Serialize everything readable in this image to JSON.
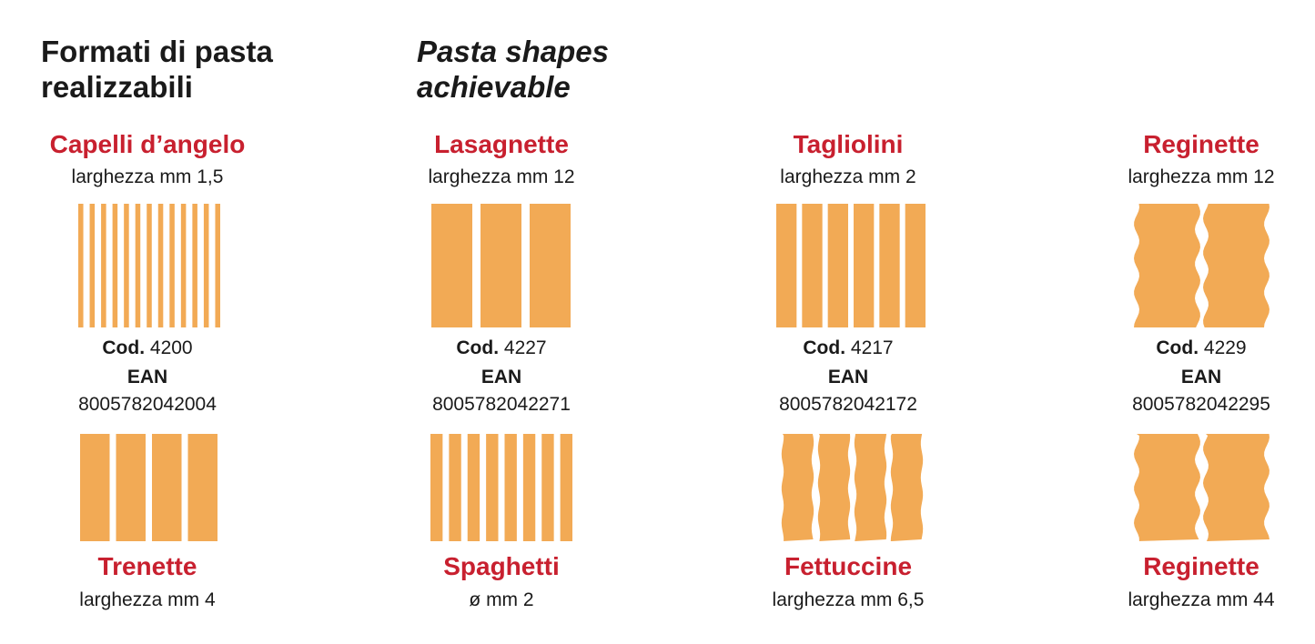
{
  "header": {
    "title_it": [
      "Formati di pasta",
      "realizzabili"
    ],
    "title_en": [
      "Pasta shapes",
      "achievable"
    ]
  },
  "columns": [
    {
      "top": {
        "name": "Capelli d’angelo",
        "width": "larghezza mm 1,5",
        "code_label": "Cod.",
        "code": "4200",
        "ean_label": "EAN",
        "ean": "8005782042004"
      },
      "bottom": {
        "name": "Trenette",
        "width": "larghezza mm 4"
      }
    },
    {
      "top": {
        "name": "Lasagnette",
        "width": "larghezza mm 12",
        "code_label": "Cod.",
        "code": "4227",
        "ean_label": "EAN",
        "ean": "8005782042271"
      },
      "bottom": {
        "name": "Spaghetti",
        "width": "ø mm 2"
      }
    },
    {
      "top": {
        "name": "Tagliolini",
        "width": "larghezza mm 2",
        "code_label": "Cod.",
        "code": "4217",
        "ean_label": "EAN",
        "ean": "8005782042172"
      },
      "bottom": {
        "name": "Fettuccine",
        "width": "larghezza mm 6,5"
      }
    },
    {
      "top": {
        "name": "Reginette",
        "width": "larghezza mm 12",
        "code_label": "Cod.",
        "code": "4229",
        "ean_label": "EAN",
        "ean": "8005782042295"
      },
      "bottom": {
        "name": "Reginette",
        "width": "larghezza mm 44"
      }
    }
  ]
}
